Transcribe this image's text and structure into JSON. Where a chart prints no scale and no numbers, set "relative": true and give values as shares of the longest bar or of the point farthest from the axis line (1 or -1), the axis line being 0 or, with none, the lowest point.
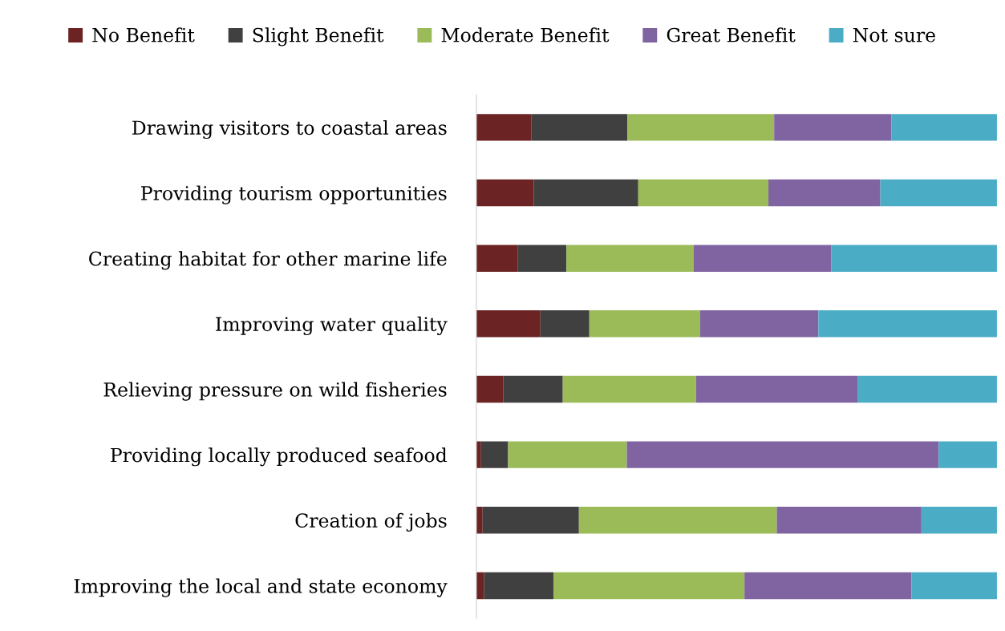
{
  "chart_data": {
    "type": "bar",
    "orientation": "horizontal",
    "stacked": true,
    "relative": true,
    "categories": [
      "Drawing visitors to coastal areas",
      "Providing tourism opportunities",
      "Creating habitat for other marine life",
      "Improving water quality",
      "Relieving pressure on wild fisheries",
      "Providing locally produced seafood",
      "Creation of jobs",
      "Improving the local and state economy"
    ],
    "series": [
      {
        "name": "No Benefit",
        "color": "#6b2323",
        "values": [
          0.106,
          0.11,
          0.079,
          0.123,
          0.052,
          0.009,
          0.012,
          0.015
        ]
      },
      {
        "name": "Slight Benefit",
        "color": "#404040",
        "values": [
          0.184,
          0.201,
          0.094,
          0.094,
          0.114,
          0.052,
          0.185,
          0.133
        ]
      },
      {
        "name": "Moderate Benefit",
        "color": "#9bbb59",
        "values": [
          0.282,
          0.25,
          0.244,
          0.213,
          0.256,
          0.228,
          0.38,
          0.367
        ]
      },
      {
        "name": "Great Benefit",
        "color": "#8064a2",
        "values": [
          0.225,
          0.215,
          0.265,
          0.227,
          0.31,
          0.599,
          0.278,
          0.321
        ]
      },
      {
        "name": "Not sure",
        "color": "#4bacc6",
        "values": [
          0.203,
          0.224,
          0.318,
          0.343,
          0.268,
          0.112,
          0.145,
          0.164
        ]
      }
    ],
    "legend": "top",
    "tick_labels": "y"
  }
}
